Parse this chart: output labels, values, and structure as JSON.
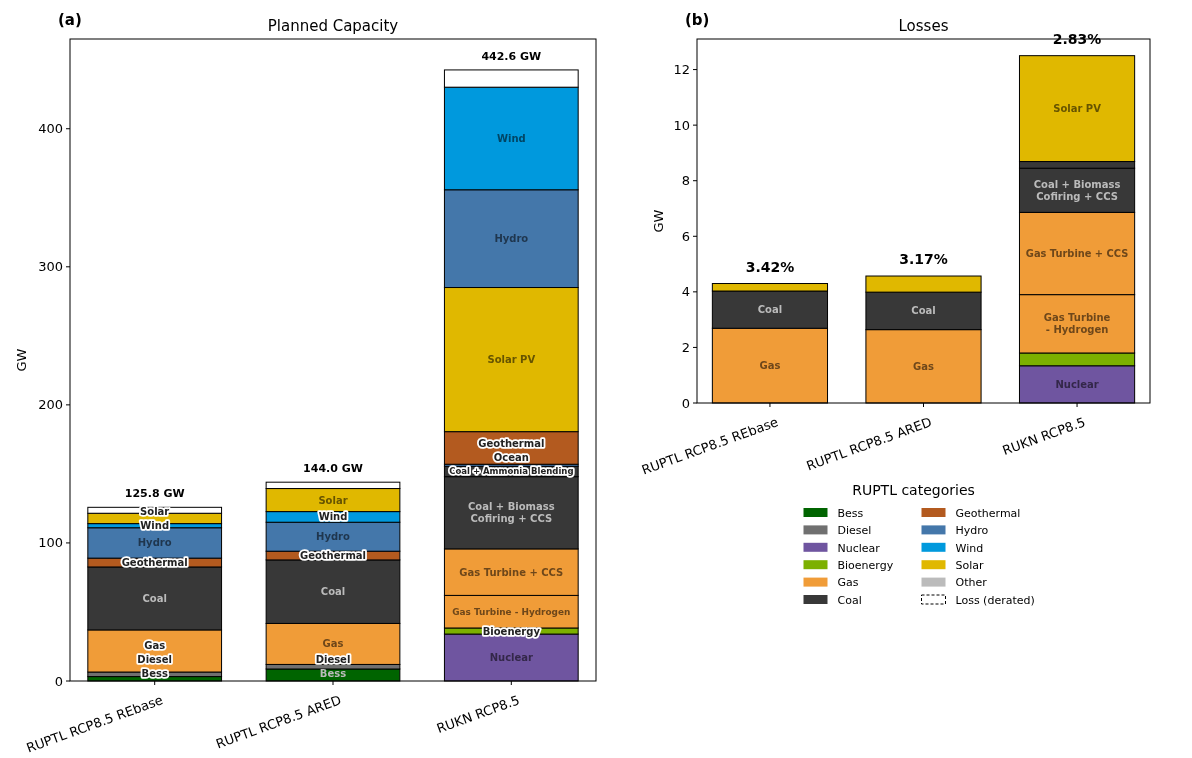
{
  "chart_data": [
    {
      "type": "bar",
      "title": "Planned Capacity",
      "ylabel": "GW",
      "annotations": [
        "(a)"
      ],
      "stacked": true,
      "grid": false,
      "legend": false,
      "categories": [
        "RUPTL RCP8.5 REbase",
        "RUPTL RCP8.5 ARED",
        "RUKN RCP8.5"
      ],
      "ylim": [
        0,
        465
      ],
      "yticks": [
        0,
        100,
        200,
        300,
        400
      ],
      "totals": [
        "125.8 GW",
        "144.0 GW",
        "442.6 GW"
      ],
      "series": [
        {
          "color": "#006400",
          "values": [
            3.2,
            8.7,
            0
          ],
          "value_labels": [
            "Bess",
            "Bess",
            null
          ]
        },
        {
          "color": "#707070",
          "values": [
            3.3,
            3.3,
            0
          ],
          "value_labels": [
            "Diesel",
            "Diesel",
            null
          ]
        },
        {
          "color": "#6f55a0",
          "values": [
            0,
            0,
            34
          ],
          "value_labels": [
            null,
            null,
            "Nuclear"
          ]
        },
        {
          "color": "#7cb000",
          "values": [
            0,
            0,
            4.4
          ],
          "value_labels": [
            null,
            null,
            "Bioenergy"
          ]
        },
        {
          "color": "#f09c38",
          "values": [
            30.5,
            29.7,
            23.6
          ],
          "value_labels": [
            "Gas",
            "Gas",
            "Gas Turbine - Hydrogen"
          ]
        },
        {
          "color": "#f09c38",
          "values": [
            0,
            0,
            33.7
          ],
          "value_labels": [
            null,
            null,
            "Gas Turbine + CCS"
          ]
        },
        {
          "color": "#383838",
          "values": [
            45.6,
            46,
            52.3
          ],
          "value_labels": [
            "Coal",
            "Coal",
            "Coal + Biomass Cofiring + CCS"
          ]
        },
        {
          "color": "#383838",
          "values": [
            0,
            0,
            7.5
          ],
          "value_labels": [
            null,
            null,
            "Coal + Ammonia Blending"
          ]
        },
        {
          "color": "#4477aa",
          "values": [
            0,
            0,
            1.5
          ],
          "value_labels": [
            null,
            null,
            "Ocean"
          ]
        },
        {
          "color": "#b35a1f",
          "values": [
            6.4,
            6.3,
            23.6
          ],
          "value_labels": [
            "Geothermal",
            "Geothermal",
            "Geothermal"
          ]
        },
        {
          "color": "#e0b800",
          "values": [
            0,
            0,
            104.4
          ],
          "value_labels": [
            null,
            null,
            "Solar PV"
          ]
        },
        {
          "color": "#4477aa",
          "values": [
            22,
            21,
            70.8
          ],
          "value_labels": [
            "Hydro",
            "Hydro",
            "Hydro"
          ]
        },
        {
          "color": "#0099dd",
          "values": [
            3,
            7.7,
            74.3
          ],
          "value_labels": [
            "Wind",
            "Wind",
            "Wind"
          ]
        },
        {
          "color": "#e0b800",
          "values": [
            7.5,
            16.7,
            0
          ],
          "value_labels": [
            "Solar",
            "Solar",
            null
          ]
        },
        {
          "color": "#ffffff",
          "values": [
            4.3,
            4.6,
            12.5
          ]
        }
      ]
    },
    {
      "type": "bar",
      "title": "Losses",
      "ylabel": "GW",
      "annotations": [
        "(b)",
        {
          "text": "3.42%",
          "x": "RUPTL RCP8.5 REbase",
          "y": 4.3
        },
        {
          "text": "3.17%",
          "x": "RUPTL RCP8.5 ARED",
          "y": 4.57
        },
        {
          "text": "2.83%",
          "x": "RUKN RCP8.5",
          "y": 12.5
        }
      ],
      "stacked": true,
      "grid": false,
      "legend": "bottom",
      "legend_title": "RUPTL categories",
      "categories": [
        "RUPTL RCP8.5 REbase",
        "RUPTL RCP8.5 ARED",
        "RUKN RCP8.5"
      ],
      "ylim": [
        0,
        13.1
      ],
      "yticks": [
        0,
        2,
        4,
        6,
        8,
        10,
        12
      ],
      "series": [
        {
          "name": "Bess",
          "color": "#006400",
          "values": [
            0,
            0,
            0
          ]
        },
        {
          "name": "Diesel",
          "color": "#707070",
          "values": [
            0,
            0,
            0
          ]
        },
        {
          "name": "Nuclear",
          "color": "#6f55a0",
          "values": [
            0,
            0,
            1.34
          ],
          "value_labels": [
            null,
            null,
            "Nuclear"
          ]
        },
        {
          "name": "Bioenergy",
          "color": "#7cb000",
          "values": [
            0,
            0,
            0.46
          ]
        },
        {
          "name": "Gas",
          "color": "#f09c38",
          "values": [
            2.69,
            2.64,
            2.1
          ],
          "value_labels": [
            "Gas",
            "Gas",
            "Gas Turbine - Hydrogen"
          ]
        },
        {
          "color": "#f09c38",
          "values": [
            0,
            0,
            2.96
          ],
          "value_labels": [
            null,
            null,
            "Gas Turbine + CCS"
          ]
        },
        {
          "name": "Coal",
          "color": "#383838",
          "values": [
            1.34,
            1.35,
            1.59
          ],
          "value_labels": [
            "Coal",
            "Coal",
            "Coal + Biomass Cofiring + CCS"
          ]
        },
        {
          "color": "#383838",
          "values": [
            0,
            0,
            0.24
          ]
        },
        {
          "name": "Geothermal",
          "color": "#b35a1f",
          "values": [
            0,
            0,
            0
          ]
        },
        {
          "name": "Hydro",
          "color": "#4477aa",
          "values": [
            0,
            0,
            0
          ]
        },
        {
          "name": "Wind",
          "color": "#0099dd",
          "values": [
            0,
            0,
            0
          ]
        },
        {
          "name": "Solar",
          "color": "#e0b800",
          "values": [
            0.27,
            0.58,
            3.81
          ],
          "value_labels": [
            null,
            null,
            "Solar PV"
          ]
        },
        {
          "name": "Other",
          "color": "#bbbbbb",
          "values": [
            0,
            0,
            0
          ]
        },
        {
          "name": "Loss (derated)",
          "color": "#ffffff",
          "values": [
            0,
            0,
            0
          ]
        }
      ]
    }
  ]
}
